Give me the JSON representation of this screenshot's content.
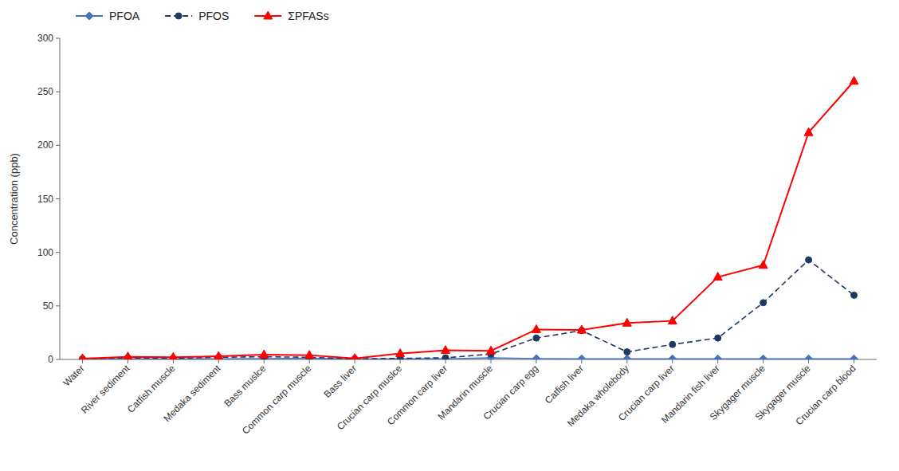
{
  "chart_data": {
    "type": "line",
    "categories": [
      "Water",
      "River sediment",
      "Catfish muscle",
      "Medaka sediment",
      "Bass muslce",
      "Common carp muscle",
      "Bass liver",
      "Crucian carp muslce",
      "Common carp liver",
      "Mandarin muscle",
      "Crucian carp egg",
      "Catfish liver",
      "Medaka wholebody",
      "Crucian carp liver",
      "Mandarin fish liver",
      "Skygager muscle",
      "Skygager muscle",
      "Crucian carp blood"
    ],
    "series": [
      {
        "name": "PFOA",
        "color": "#4472C4",
        "marker": "diamond",
        "line_style": "solid",
        "values": [
          0.3,
          0.5,
          0.4,
          0.5,
          0.8,
          1.0,
          0.3,
          0.5,
          0.6,
          1.5,
          0.8,
          0.5,
          0.5,
          0.5,
          0.5,
          0.5,
          0.5,
          0.5
        ]
      },
      {
        "name": "PFOS",
        "color": "#1F3864",
        "marker": "circle",
        "line_style": "dashed",
        "values": [
          0.5,
          1.5,
          1.0,
          2.0,
          2.5,
          2.0,
          0.5,
          1.0,
          1.5,
          5.0,
          20.0,
          27.0,
          7.0,
          14.0,
          20.0,
          53.0,
          93.0,
          60.0
        ]
      },
      {
        "name": "ΣPFASs",
        "color": "#FF0000",
        "marker": "triangle",
        "line_style": "solid",
        "values": [
          0.8,
          2.5,
          2.0,
          3.0,
          4.5,
          4.0,
          1.0,
          5.5,
          8.5,
          8.0,
          28.0,
          27.5,
          34.0,
          36.0,
          77.0,
          88.0,
          212.0,
          260.0
        ]
      }
    ],
    "y_label": "Concentration (ppb)",
    "ylim": [
      0,
      300
    ],
    "yticks": [
      0,
      50,
      100,
      150,
      200,
      250,
      300
    ],
    "grid": false,
    "legend": "upper left"
  }
}
